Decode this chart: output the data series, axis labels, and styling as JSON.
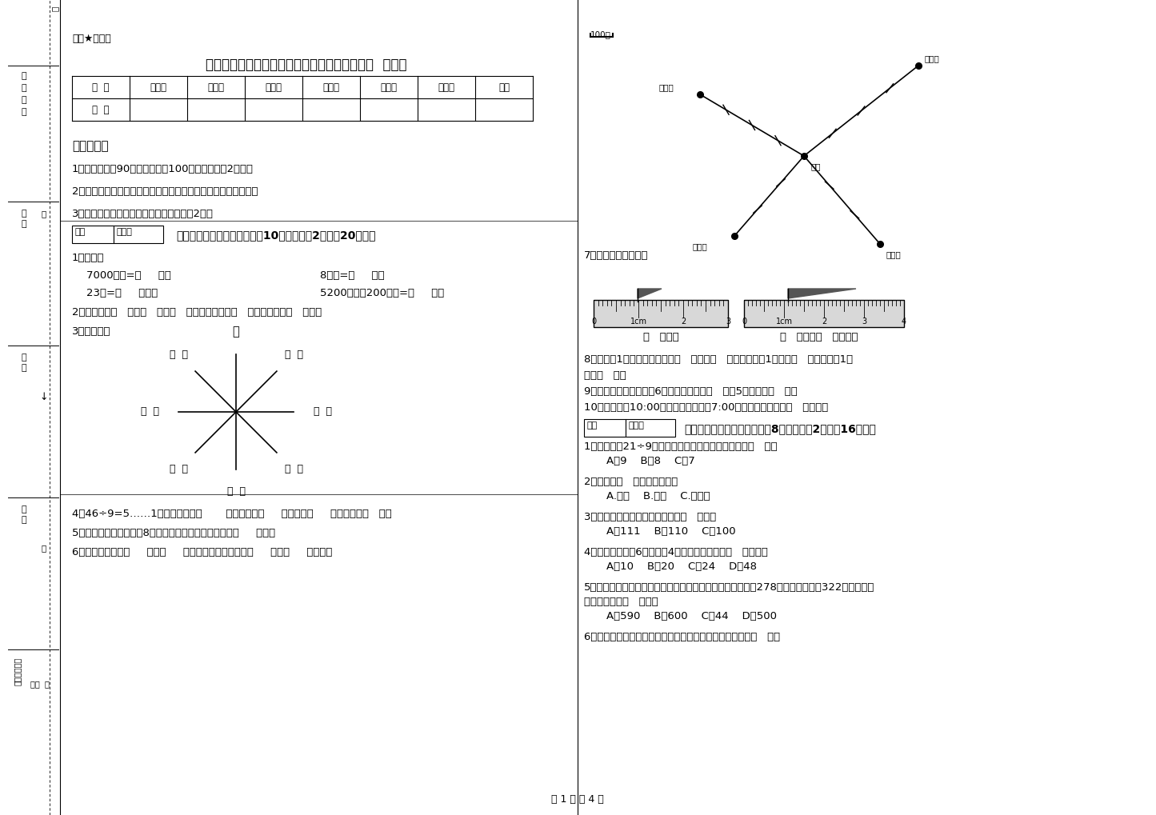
{
  "bg_color": "#ffffff",
  "title_top": "绝密★启用前",
  "title_main": "江西省重点小学三年级数学下学期过关检测试卷  附解析",
  "table_headers": [
    "题  号",
    "填空题",
    "选择题",
    "判断题",
    "计算题",
    "综合题",
    "应用题",
    "总分"
  ],
  "table_row": [
    "得  分",
    "",
    "",
    "",
    "",
    "",
    "",
    ""
  ],
  "exam_notice_title": "考试须知：",
  "exam_notice": [
    "1、考试时间：90分钟，满分为100分（含卷面分2分）。",
    "2、请首先按要求在试卷的指定位置填写您的姓名、班级、学号。",
    "3、不要在试卷上乱写乱画，卷面不整洁扣2分。"
  ],
  "section1_title": "一、用心思考，正确填空（共10小题，每题2分，共20分）。",
  "q1_title": "1、换算。",
  "q1_r1_l": "7000千克=（     ）吨",
  "q1_r1_r": "8千克=（     ）克",
  "q1_r2_l": "23吨=（     ）千克",
  "q1_r2_r": "5200千克－200千克=（     ）吨",
  "q2": "2、你出生于（   ）年（   ）月（   ）日，那一年是（   ）年，全年有（   ）天。",
  "q3_title": "3、填一填。",
  "q4": "4、46÷9=5……1中，被除数是（       ），除数是（     ），商是（     ），余数是（   ）。",
  "q5": "5、小明从一楼到三楼用8秒，照这样他从一楼到五楼用（     ）秒。",
  "q6": "6、小红家在学校（     ）方（     ）米处；小明家在学校（     ）方（     ）米处。",
  "map_note": "100米",
  "q7_title": "7、量出钉子的长度。",
  "ruler1_label": "（   ）毫米",
  "ruler2_label": "（   ）厘米（   ）毫米。",
  "q8": "8、分针走1小格，秒针正好走（   ），是（   ）秒。分针走1大格是（   ），时针走1大",
  "q8b": "格是（   ）。",
  "q9": "9、把一根绳子平均分成6份，每份是它的（   ），5份是它的（   ）。",
  "q10": "10、小林晚上10:00睡觉，第二天早上7:00起床，他一共睡了（   ）小时。",
  "section2_title": "二、反复比较，慎重选择（共8小题，每题2分，共16分）。",
  "mc1": "1、要使「口21÷9」的数是三位数，「口」里只能填（   ）。",
  "mc1_opts": [
    "A、9",
    "B、8",
    "C、7"
  ],
  "mc2": "2、四边形（   ）平行四边形。",
  "mc2_opts": [
    "A.一定",
    "B.可能",
    "C.不可能"
  ],
  "mc3": "3、最大的三位数比最大一位数的（   ）倍。",
  "mc3_opts": [
    "A、111",
    "B、110",
    "C、100"
  ],
  "mc4": "4、一个长方形长6厘米，宽4厘米，它的周长是（   ）厘米。",
  "mc4_opts": [
    "A、10",
    "B、20",
    "C、24",
    "D、48"
  ],
  "mc5": "5、广州新电视塔是广州市目前最高的建筑，它比中信大厦高278米。中信大厦高322米，那么广",
  "mc5b": "州新电视塔高（   ）米。",
  "mc5_opts": [
    "A、590",
    "B、600",
    "C、44",
    "D、500"
  ],
  "mc6": "6、时针从上一个数字到相邻的下一个数字，经过的时间是（   ）。",
  "page_footer": "第 1 页 共 4 页",
  "score_label": "得分",
  "scorer_label": "评卷人",
  "north_label": "北",
  "school_label": "学校",
  "xiaohong_label": "小红家",
  "xiaogang_label": "小刚家",
  "xiaoming_label": "小明家",
  "xiaoli_label": "小丽家",
  "sidebar_labels": [
    "准",
    "考",
    "证",
    "号",
    "姓名",
    "准",
    "班级",
    "线",
    "学校",
    "乡镇（街道）",
    "乡镇  组"
  ]
}
